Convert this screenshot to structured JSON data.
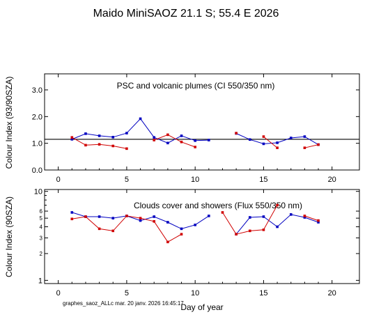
{
  "title": "Maido MiniSAOZ  21.1 S; 55.4 E   2026",
  "footer": "graphes_saoz_ALLc  mar. 20 janv. 2026 16:45:17",
  "colors": {
    "blue": "#0000c0",
    "red": "#d00000",
    "axis": "#000000"
  },
  "chart_data": [
    {
      "type": "line",
      "annotation": "PSC and volcanic plumes (CI 550/350 nm)",
      "ylabel": "Colour Index (93/90SZA)",
      "xlabel": "",
      "xlim": [
        -1,
        22
      ],
      "ylim": [
        0,
        3.6
      ],
      "yscale": "linear",
      "xticks": [
        0,
        5,
        10,
        15,
        20
      ],
      "xtick_labels": [
        "0",
        "5",
        "10",
        "15",
        "20"
      ],
      "yticks": [
        0.0,
        1.0,
        2.0,
        3.0
      ],
      "ytick_labels": [
        "0.0",
        "1.0",
        "2.0",
        "3.0"
      ],
      "reference_line": 1.15,
      "series": [
        {
          "color": "blue",
          "x": [
            1,
            2,
            3,
            4,
            5,
            6,
            7,
            8,
            9,
            10,
            11,
            null,
            13,
            14,
            15,
            16,
            17,
            18,
            19
          ],
          "y": [
            1.15,
            1.36,
            1.28,
            1.23,
            1.38,
            1.92,
            1.22,
            1.01,
            1.28,
            1.1,
            1.12,
            null,
            1.37,
            1.14,
            0.98,
            1.02,
            1.2,
            1.25,
            0.95
          ]
        },
        {
          "color": "red",
          "x": [
            1,
            2,
            3,
            4,
            5,
            null,
            7,
            8,
            9,
            10,
            null,
            13,
            null,
            15,
            16,
            null,
            18,
            19
          ],
          "y": [
            1.22,
            0.93,
            0.96,
            0.9,
            0.8,
            null,
            1.12,
            1.32,
            1.05,
            0.86,
            null,
            1.38,
            null,
            1.25,
            0.83,
            null,
            0.83,
            0.95
          ]
        }
      ]
    },
    {
      "type": "line",
      "annotation": "Clouds cover and showers (Flux 550/350 nm)",
      "ylabel": "Colour Index (90SZA)",
      "xlabel": "Day of year",
      "xlim": [
        -1,
        22
      ],
      "ylim": [
        0.92,
        10.5
      ],
      "yscale": "log",
      "xticks": [
        0,
        5,
        10,
        15,
        20
      ],
      "xtick_labels": [
        "0",
        "5",
        "10",
        "15",
        "20"
      ],
      "yticks": [
        1,
        2,
        3,
        4,
        5,
        6,
        10
      ],
      "ytick_labels": [
        "1",
        "2",
        "3",
        "4",
        "5",
        "6",
        "10"
      ],
      "series": [
        {
          "color": "blue",
          "x": [
            1,
            2,
            3,
            4,
            5,
            6,
            7,
            8,
            9,
            10,
            11,
            null,
            13,
            14,
            15,
            16,
            17,
            18,
            19
          ],
          "y": [
            5.8,
            5.2,
            5.2,
            5.0,
            5.3,
            4.7,
            5.2,
            4.5,
            3.8,
            4.2,
            5.3,
            null,
            3.3,
            5.1,
            5.2,
            4.0,
            5.5,
            5.1,
            4.5
          ]
        },
        {
          "color": "red",
          "x": [
            1,
            2,
            3,
            4,
            5,
            6,
            7,
            8,
            9,
            null,
            12,
            13,
            14,
            15,
            16,
            null,
            18,
            19
          ],
          "y": [
            4.9,
            5.2,
            3.8,
            3.6,
            5.3,
            5.0,
            4.6,
            2.7,
            3.3,
            null,
            5.8,
            3.3,
            3.6,
            3.7,
            7.0,
            null,
            5.3,
            4.7
          ]
        }
      ]
    }
  ]
}
